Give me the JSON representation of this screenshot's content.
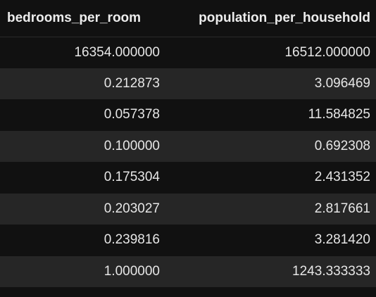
{
  "table": {
    "columns": [
      "bedrooms_per_room",
      "population_per_household"
    ],
    "rows": [
      [
        "16354.000000",
        "16512.000000"
      ],
      [
        "0.212873",
        "3.096469"
      ],
      [
        "0.057378",
        "11.584825"
      ],
      [
        "0.100000",
        "0.692308"
      ],
      [
        "0.175304",
        "2.431352"
      ],
      [
        "0.203027",
        "2.817661"
      ],
      [
        "0.239816",
        "3.281420"
      ],
      [
        "1.000000",
        "1243.333333"
      ]
    ]
  },
  "colors": {
    "background": "#111111",
    "row_alt": "#262626",
    "text": "#e6e6e6"
  }
}
